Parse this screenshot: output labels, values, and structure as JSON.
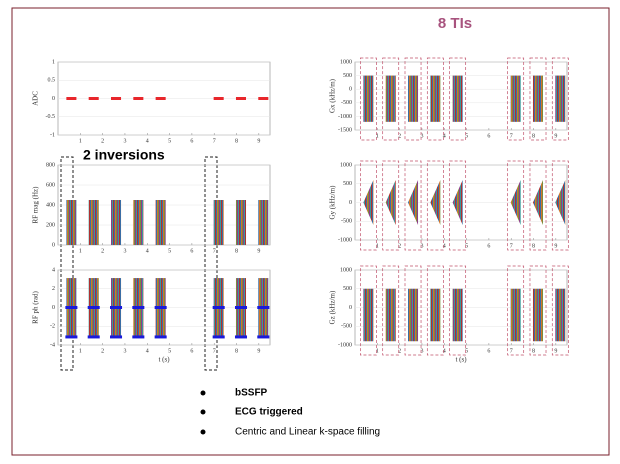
{
  "title": "8 TIs",
  "annotation": "2 inversions",
  "bullets": [
    "bSSFP",
    "ECG triggered",
    "Centric and Linear k-space filling"
  ],
  "chart_data": [
    {
      "type": "range",
      "ylabel": "ADC",
      "xlim": [
        0,
        9.5
      ],
      "xticks": [
        1,
        2,
        3,
        4,
        5,
        6,
        7,
        8,
        9
      ],
      "ylim": [
        -1,
        1
      ],
      "yticks": [
        -1,
        -0.5,
        0,
        0.5,
        1
      ],
      "color": "#e8262b",
      "x": [
        0.6,
        1.6,
        2.6,
        3.6,
        4.6,
        7.2,
        8.2,
        9.2
      ],
      "high": [
        0,
        0,
        0,
        0,
        0,
        0,
        0,
        0
      ],
      "low": [
        0,
        0,
        0,
        0,
        0,
        0,
        0,
        0
      ]
    },
    {
      "type": "bar",
      "ylabel": "RF mag (Hz)",
      "xlim": [
        0,
        9.5
      ],
      "xticks": [
        1,
        2,
        3,
        4,
        5,
        6,
        7,
        8,
        9
      ],
      "ylim": [
        0,
        800
      ],
      "yticks": [
        0,
        200,
        400,
        600,
        800
      ],
      "x": [
        0.6,
        1.6,
        2.6,
        3.6,
        4.6,
        7.2,
        8.2,
        9.2
      ],
      "values": [
        450,
        450,
        450,
        450,
        450,
        450,
        450,
        450
      ]
    },
    {
      "type": "range",
      "ylabel": "RF ph (rad)",
      "xlabel": "t (s)",
      "xlim": [
        0,
        9.5
      ],
      "xticks": [
        1,
        2,
        3,
        4,
        5,
        6,
        7,
        8,
        9
      ],
      "ylim": [
        -4,
        4
      ],
      "yticks": [
        -4,
        -2,
        0,
        2,
        4
      ],
      "x": [
        0.6,
        1.6,
        2.6,
        3.6,
        4.6,
        7.2,
        8.2,
        9.2
      ],
      "high": [
        3.14,
        3.14,
        3.14,
        3.14,
        3.14,
        3.14,
        3.14,
        3.14
      ],
      "low": [
        -3.14,
        -3.14,
        -3.14,
        -3.14,
        -3.14,
        -3.14,
        -3.14,
        -3.14
      ],
      "levels": [
        0,
        -3.14
      ],
      "level_color": "#1a1adb"
    },
    {
      "type": "range",
      "ylabel": "Gx (kHz/m)",
      "xlim": [
        0,
        9.5
      ],
      "xticks": [
        1,
        2,
        3,
        4,
        5,
        6,
        7,
        8,
        9
      ],
      "ylim": [
        -1500,
        1000
      ],
      "yticks": [
        -1500,
        -1000,
        -500,
        0,
        500,
        1000
      ],
      "x": [
        0.6,
        1.6,
        2.6,
        3.6,
        4.6,
        7.2,
        8.2,
        9.2
      ],
      "high": [
        500,
        500,
        500,
        500,
        500,
        500,
        500,
        500
      ],
      "low": [
        -1200,
        -1200,
        -1200,
        -1200,
        -1200,
        -1200,
        -1200,
        -1200
      ]
    },
    {
      "type": "triangle",
      "ylabel": "Gy (kHz/m)",
      "xlim": [
        0,
        9.5
      ],
      "xticks": [
        1,
        2,
        3,
        4,
        5,
        6,
        7,
        8,
        9
      ],
      "ylim": [
        -1000,
        1000
      ],
      "yticks": [
        -1000,
        -500,
        0,
        500,
        1000
      ],
      "x": [
        0.6,
        1.6,
        2.6,
        3.6,
        4.6,
        7.2,
        8.2,
        9.2
      ],
      "high": [
        600,
        600,
        600,
        600,
        600,
        600,
        600,
        600
      ],
      "low": [
        -600,
        -600,
        -600,
        -600,
        -600,
        -600,
        -600,
        -600
      ]
    },
    {
      "type": "range",
      "ylabel": "Gz (kHz/m)",
      "xlabel": "t (s)",
      "xlim": [
        0,
        9.5
      ],
      "xticks": [
        1,
        2,
        3,
        4,
        5,
        6,
        7,
        8,
        9
      ],
      "ylim": [
        -1000,
        1000
      ],
      "yticks": [
        -1000,
        -500,
        0,
        500,
        1000
      ],
      "x": [
        0.6,
        1.6,
        2.6,
        3.6,
        4.6,
        7.2,
        8.2,
        9.2
      ],
      "high": [
        500,
        500,
        500,
        500,
        500,
        500,
        500,
        500
      ],
      "low": [
        -900,
        -900,
        -900,
        -900,
        -900,
        -900,
        -900,
        -900
      ]
    }
  ]
}
